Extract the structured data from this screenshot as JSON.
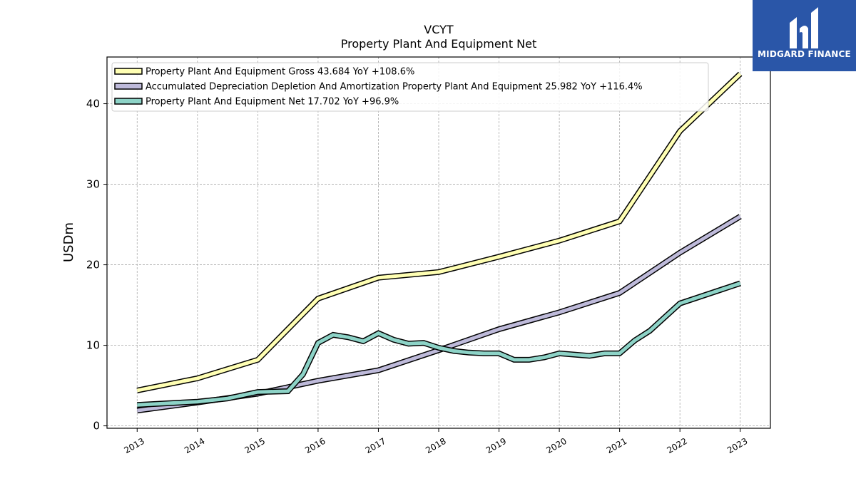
{
  "brand": {
    "name": "MIDGARD FINANCE",
    "color": "#2a56a8"
  },
  "chart_data": {
    "type": "line",
    "title": "VCYT",
    "subtitle": "Property Plant And Equipment Net",
    "xlabel": "",
    "ylabel": "USDm",
    "xlim": [
      2012.5,
      2023.5
    ],
    "ylim": [
      -0.3,
      45.8
    ],
    "x_ticks": [
      2013,
      2014,
      2015,
      2016,
      2017,
      2018,
      2019,
      2020,
      2021,
      2022,
      2023
    ],
    "x_tick_labels": [
      "2013",
      "2014",
      "2015",
      "2016",
      "2017",
      "2018",
      "2019",
      "2020",
      "2021",
      "2022",
      "2023"
    ],
    "y_ticks": [
      0,
      10,
      20,
      30,
      40
    ],
    "y_tick_labels": [
      "0",
      "10",
      "20",
      "30",
      "40"
    ],
    "grid": true,
    "legend_position": "top-left",
    "series": [
      {
        "name": "Property Plant And Equipment Gross  43.684 YoY +108.6%",
        "color": "#ffffb3",
        "points": [
          [
            2013.0,
            4.4
          ],
          [
            2014.0,
            5.9
          ],
          [
            2015.0,
            8.2
          ],
          [
            2016.0,
            15.8
          ],
          [
            2017.0,
            18.4
          ],
          [
            2018.0,
            19.1
          ],
          [
            2019.0,
            21.0
          ],
          [
            2020.0,
            23.0
          ],
          [
            2021.0,
            25.4
          ],
          [
            2022.0,
            36.6
          ],
          [
            2023.0,
            43.7
          ]
        ]
      },
      {
        "name": "Accumulated Depreciation Depletion And Amortization Property Plant And Equipment  25.982 YoY +116.4%",
        "color": "#bebada",
        "points": [
          [
            2013.0,
            1.9
          ],
          [
            2014.0,
            2.9
          ],
          [
            2015.0,
            4.0
          ],
          [
            2016.0,
            5.6
          ],
          [
            2017.0,
            6.9
          ],
          [
            2018.0,
            9.4
          ],
          [
            2019.0,
            12.0
          ],
          [
            2020.0,
            14.1
          ],
          [
            2021.0,
            16.5
          ],
          [
            2022.0,
            21.5
          ],
          [
            2023.0,
            26.0
          ]
        ]
      },
      {
        "name": "Property Plant And Equipment Net  17.702 YoY +96.9%",
        "color": "#8dd3c7",
        "points": [
          [
            2013.0,
            2.6
          ],
          [
            2014.0,
            3.0
          ],
          [
            2014.5,
            3.4
          ],
          [
            2015.0,
            4.2
          ],
          [
            2015.5,
            4.3
          ],
          [
            2015.75,
            6.4
          ],
          [
            2016.0,
            10.3
          ],
          [
            2016.25,
            11.3
          ],
          [
            2016.5,
            11.0
          ],
          [
            2016.75,
            10.5
          ],
          [
            2017.0,
            11.5
          ],
          [
            2017.25,
            10.7
          ],
          [
            2017.5,
            10.2
          ],
          [
            2017.75,
            10.3
          ],
          [
            2018.0,
            9.7
          ],
          [
            2018.25,
            9.3
          ],
          [
            2018.5,
            9.1
          ],
          [
            2018.75,
            9.0
          ],
          [
            2019.0,
            9.0
          ],
          [
            2019.25,
            8.2
          ],
          [
            2019.5,
            8.2
          ],
          [
            2019.75,
            8.5
          ],
          [
            2020.0,
            9.0
          ],
          [
            2020.5,
            8.7
          ],
          [
            2020.75,
            9.0
          ],
          [
            2021.0,
            9.0
          ],
          [
            2021.25,
            10.6
          ],
          [
            2021.5,
            11.8
          ],
          [
            2022.0,
            15.2
          ],
          [
            2023.0,
            17.7
          ]
        ]
      }
    ]
  }
}
